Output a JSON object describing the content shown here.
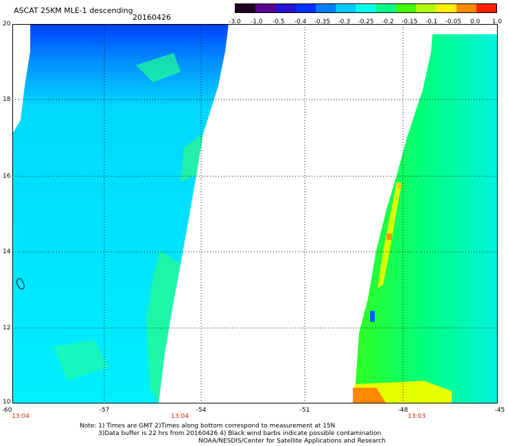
{
  "header": {
    "title": "ASCAT 25KM MLE-1 descending",
    "date": "20160426"
  },
  "colorbar": {
    "ticks": [
      "-3.0",
      "-1.0",
      "-0.5",
      "-0.4",
      "-0.35",
      "-0.3",
      "-0.25",
      "-0.2",
      "-0.15",
      "-0.1",
      "-0.05",
      "0.0",
      "1.0"
    ],
    "colors": [
      "#200020",
      "#5a0090",
      "#2a10d0",
      "#0030ff",
      "#0080ff",
      "#00c8ff",
      "#00ffee",
      "#00ff88",
      "#40ff00",
      "#b0ff00",
      "#ffee00",
      "#ff8800",
      "#ff2000"
    ]
  },
  "axes": {
    "lat_labels": [
      "20",
      "18",
      "16",
      "14",
      "12",
      "10"
    ],
    "lon_labels": [
      "-60",
      "-57",
      "-54",
      "-51",
      "-48",
      "-45"
    ],
    "time_labels": [
      "13:04",
      "13:04",
      "13:03"
    ]
  },
  "footer": {
    "line1": "Note: 1) Times are GMT 2)Times along bottom correspond to measurement at 15N",
    "line2": "3)Data buffer is 22 hrs from 20160426 4) Black wind barbs indicate possible contamination",
    "line3": "NOAA/NESDIS/Center for Satellite Applications and Research"
  },
  "swaths": [
    {
      "name": "west-swath",
      "dominant_color": "#00e8ff"
    },
    {
      "name": "east-swath",
      "dominant_color": "#20ff40"
    }
  ]
}
